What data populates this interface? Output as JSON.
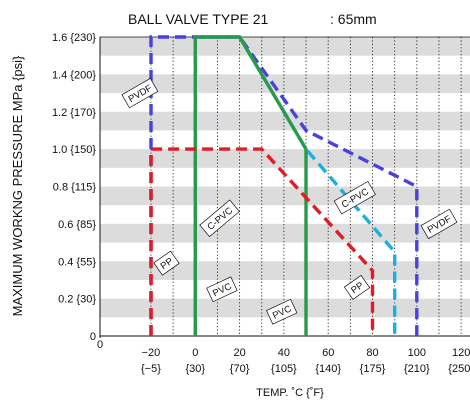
{
  "chart_data": {
    "type": "line",
    "title": "BALL VALVE TYPE 21",
    "subtitle": ": 65mm",
    "xlabel": "TEMP. ˚C {˚F}",
    "ylabel": "MAXIMUM WORKNG PRESSURE  MPa {psi}",
    "origin_label": "0",
    "xlim": [
      -20,
      120
    ],
    "ylim": [
      0,
      1.6
    ],
    "x_ticks": [
      {
        "value": -20,
        "label": "−20",
        "sublabel": "{−5}"
      },
      {
        "value": 0,
        "label": "0",
        "sublabel": "{30}"
      },
      {
        "value": 20,
        "label": "20",
        "sublabel": "{70}"
      },
      {
        "value": 40,
        "label": "40",
        "sublabel": "{105}"
      },
      {
        "value": 60,
        "label": "60",
        "sublabel": "{140}"
      },
      {
        "value": 80,
        "label": "80",
        "sublabel": "{175}"
      },
      {
        "value": 100,
        "label": "100",
        "sublabel": "{210}"
      },
      {
        "value": 120,
        "label": "120",
        "sublabel": "{250}"
      }
    ],
    "y_ticks": [
      {
        "value": 0.2,
        "label": "0.2 {30}"
      },
      {
        "value": 0.4,
        "label": "0.4 {55}"
      },
      {
        "value": 0.6,
        "label": "0.6 {85}"
      },
      {
        "value": 0.8,
        "label": "0.8 {115}"
      },
      {
        "value": 1.0,
        "label": "1.0 {150}"
      },
      {
        "value": 1.2,
        "label": "1.2 {170}"
      },
      {
        "value": 1.4,
        "label": "1.4 {200}"
      },
      {
        "value": 1.6,
        "label": "1.6 {230}"
      }
    ],
    "y_zero_label": "0",
    "background": "alternating gray/white horizontal bands with dotted vertical gridlines",
    "series": [
      {
        "name": "PVDF",
        "color": "#4a3fe0",
        "dash": "dashed",
        "points": [
          [
            -20,
            0
          ],
          [
            -20,
            1.6
          ],
          [
            20,
            1.6
          ],
          [
            50,
            1.1
          ],
          [
            100,
            0.8
          ],
          [
            100,
            0
          ]
        ]
      },
      {
        "name": "C-PVC",
        "color": "#1eaee0",
        "dash": "dashed",
        "points": [
          [
            0,
            0
          ],
          [
            0,
            1.6
          ],
          [
            20,
            1.6
          ],
          [
            50,
            1.0
          ],
          [
            90,
            0.45
          ],
          [
            90,
            0
          ]
        ]
      },
      {
        "name": "PVC",
        "color": "#2a9a4a",
        "dash": "solid",
        "points": [
          [
            0,
            0
          ],
          [
            0,
            1.6
          ],
          [
            20,
            1.6
          ],
          [
            50,
            1.0
          ],
          [
            50,
            0
          ]
        ]
      },
      {
        "name": "PP",
        "color": "#e31b23",
        "dash": "dashed",
        "points": [
          [
            -20,
            0
          ],
          [
            -20,
            1.0
          ],
          [
            30,
            1.0
          ],
          [
            80,
            0.35
          ],
          [
            80,
            0
          ]
        ]
      }
    ],
    "curve_labels": [
      {
        "text": "PVDF",
        "x": -25,
        "y": 1.3,
        "rotate": -30
      },
      {
        "text": "C-PVC",
        "x": 72,
        "y": 0.74,
        "rotate": -30
      },
      {
        "text": "C-PVC",
        "x": 11,
        "y": 0.63,
        "rotate": -40
      },
      {
        "text": "PVDF",
        "x": 110,
        "y": 0.6,
        "rotate": -30
      },
      {
        "text": "PP",
        "x": -13,
        "y": 0.39,
        "rotate": -35
      },
      {
        "text": "PVC",
        "x": 12,
        "y": 0.25,
        "rotate": -25
      },
      {
        "text": "PP",
        "x": 73,
        "y": 0.26,
        "rotate": -35
      },
      {
        "text": "PVC",
        "x": 39,
        "y": 0.13,
        "rotate": -25
      }
    ]
  }
}
